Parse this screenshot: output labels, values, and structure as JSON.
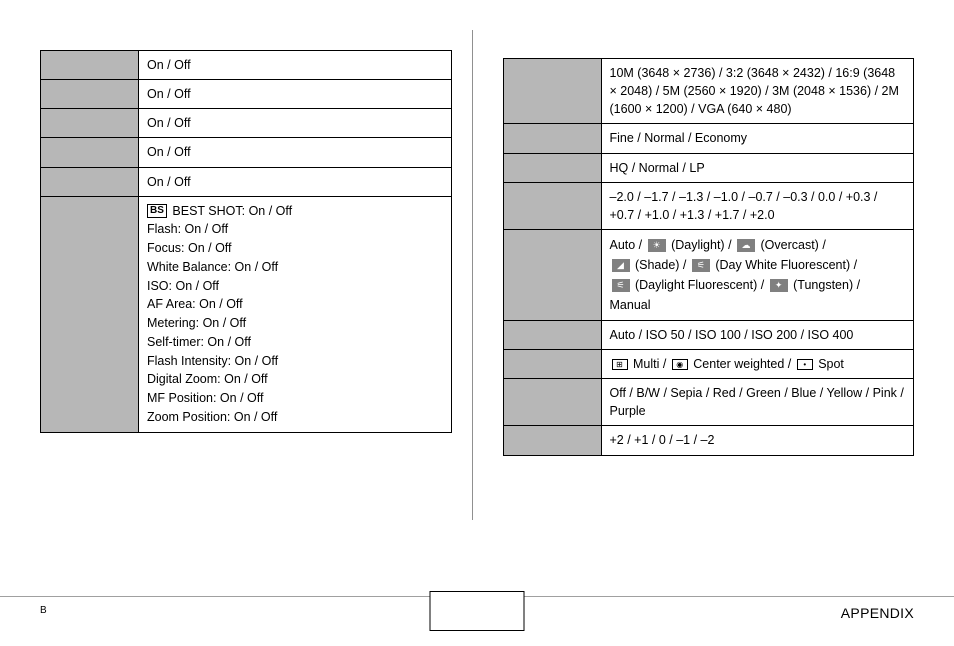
{
  "leftRows": [
    {
      "value": "On  / Off"
    },
    {
      "value": "On / Off"
    },
    {
      "value": "On  / Off"
    },
    {
      "value": "On  / Off"
    },
    {
      "value": "On  / Off"
    }
  ],
  "leftMemory": {
    "best_shot": "BEST SHOT: On / Off",
    "lines": [
      "Flash: On  / Off",
      "Focus: On / Off",
      "White Balance: On / Off",
      "ISO: On / Off",
      "AF Area: On  / Off",
      "Metering: On / Off",
      "Self-timer: On / Off",
      "Flash Intensity: On / Off",
      "Digital Zoom: On  / Off",
      "MF Position: On / Off",
      "Zoom Position: On / Off"
    ]
  },
  "right": {
    "size": "10M (3648 × 2736)  / 3:2 (3648 × 2432) / 16:9 (3648 × 2048) / 5M (2560 × 1920) / 3M (2048 × 1536) / 2M (1600 × 1200) / VGA (640 × 480)",
    "quality_snap": "Fine / Normal  / Economy",
    "quality_movie": "HQ  / Normal / LP",
    "ev": "–2.0 / –1.7 / –1.3 / –1.0 / –0.7 / –0.3 / 0.0  / +0.3 / +0.7 / +1.0 / +1.3 / +1.7 / +2.0",
    "wb": {
      "auto": "Auto  / ",
      "daylight": " (Daylight) / ",
      "overcast": " (Overcast) /",
      "shade": " (Shade) / ",
      "dwf": " (Day White Fluorescent) /",
      "df": " (Daylight Fluorescent) / ",
      "tungsten": " (Tungsten) /",
      "manual": "Manual"
    },
    "iso": "Auto  / ISO 50 / ISO 100 / ISO 200 / ISO 400",
    "metering": {
      "multi": " Multi  / ",
      "center": " Center weighted / ",
      "spot": " Spot"
    },
    "filter": "Off  / B/W / Sepia / Red / Green / Blue / Yellow / Pink / Purple",
    "sharpness": "+2 / +1 / 0  / –1 / –2"
  },
  "footer": {
    "left": "B",
    "right": "APPENDIX"
  }
}
